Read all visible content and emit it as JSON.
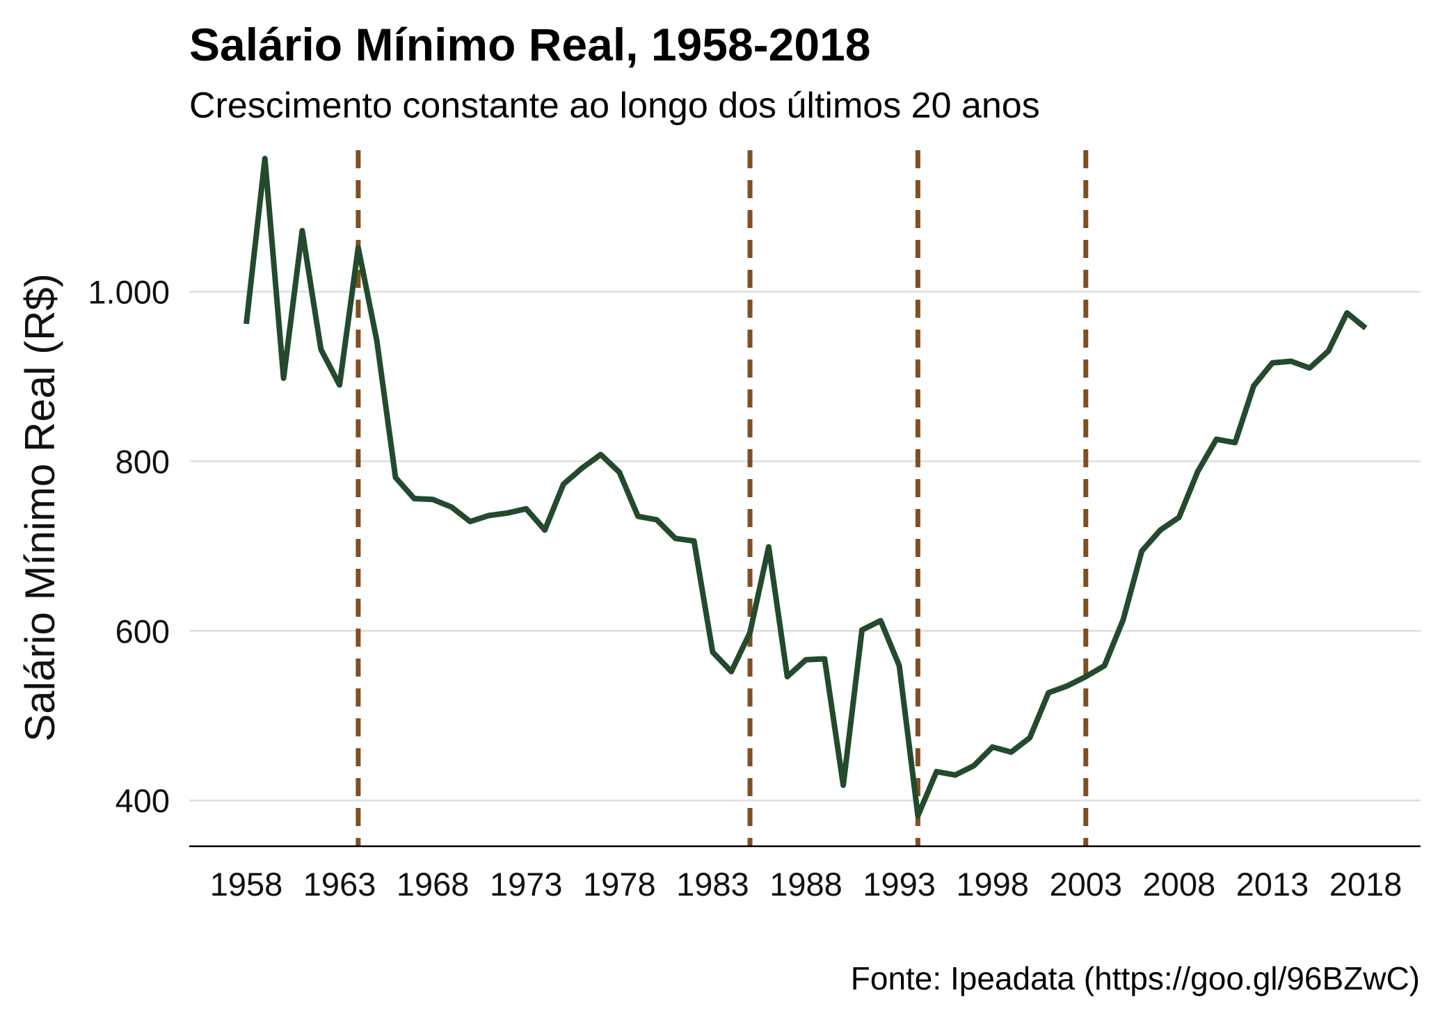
{
  "chart_data": {
    "type": "line",
    "title": "Salário Mínimo Real, 1958-2018",
    "subtitle": "Crescimento constante ao longo dos últimos 20 anos",
    "ylabel": "Salário Mínimo Real (R$)",
    "xlabel": "",
    "caption": "Fonte: Ipeadata (https://goo.gl/96BZwC)",
    "xlim": [
      1958,
      2018
    ],
    "ylim": [
      346,
      1180
    ],
    "grid": "horizontal",
    "x_ticks": [
      1958,
      1963,
      1968,
      1973,
      1978,
      1983,
      1988,
      1993,
      1998,
      2003,
      2008,
      2013,
      2018
    ],
    "y_ticks": [
      400,
      600,
      800,
      1000
    ],
    "y_tick_labels": [
      "400",
      "600",
      "800",
      "1.000"
    ],
    "x_ticks_labels": [
      "1958",
      "1963",
      "1968",
      "1973",
      "1978",
      "1983",
      "1988",
      "1993",
      "1998",
      "2003",
      "2008",
      "2013",
      "2018"
    ],
    "vertical_lines": [
      1964,
      1985,
      1994,
      2003
    ],
    "line_color": "#234a2c",
    "vline_color": "#7f4f24",
    "series": [
      {
        "x": [
          1958,
          1959,
          1960,
          1961,
          1962,
          1963,
          1964,
          1965,
          1966,
          1967,
          1968,
          1969,
          1970,
          1971,
          1972,
          1973,
          1974,
          1975,
          1976,
          1977,
          1978,
          1979,
          1980,
          1981,
          1982,
          1983,
          1984,
          1985,
          1986,
          1987,
          1988,
          1989,
          1990,
          1991,
          1992,
          1993,
          1994,
          1995,
          1996,
          1997,
          1998,
          1999,
          2000,
          2001,
          2002,
          2003,
          2004,
          2005,
          2006,
          2007,
          2008,
          2009,
          2010,
          2011,
          2012,
          2013,
          2014,
          2015,
          2016,
          2017,
          2018
        ],
        "values": [
          962,
          1157,
          898,
          1072,
          932,
          890,
          1052,
          942,
          781,
          756,
          755,
          746,
          729,
          736,
          739,
          744,
          719,
          773,
          792,
          808,
          787,
          735,
          731,
          709,
          706,
          575,
          552,
          598,
          699,
          546,
          566,
          567,
          418,
          601,
          612,
          559,
          382,
          434,
          430,
          441,
          463,
          457,
          474,
          527,
          535,
          546,
          559,
          613,
          694,
          719,
          734,
          788,
          826,
          822,
          889,
          916,
          918,
          910,
          930,
          975,
          957
        ]
      }
    ]
  }
}
